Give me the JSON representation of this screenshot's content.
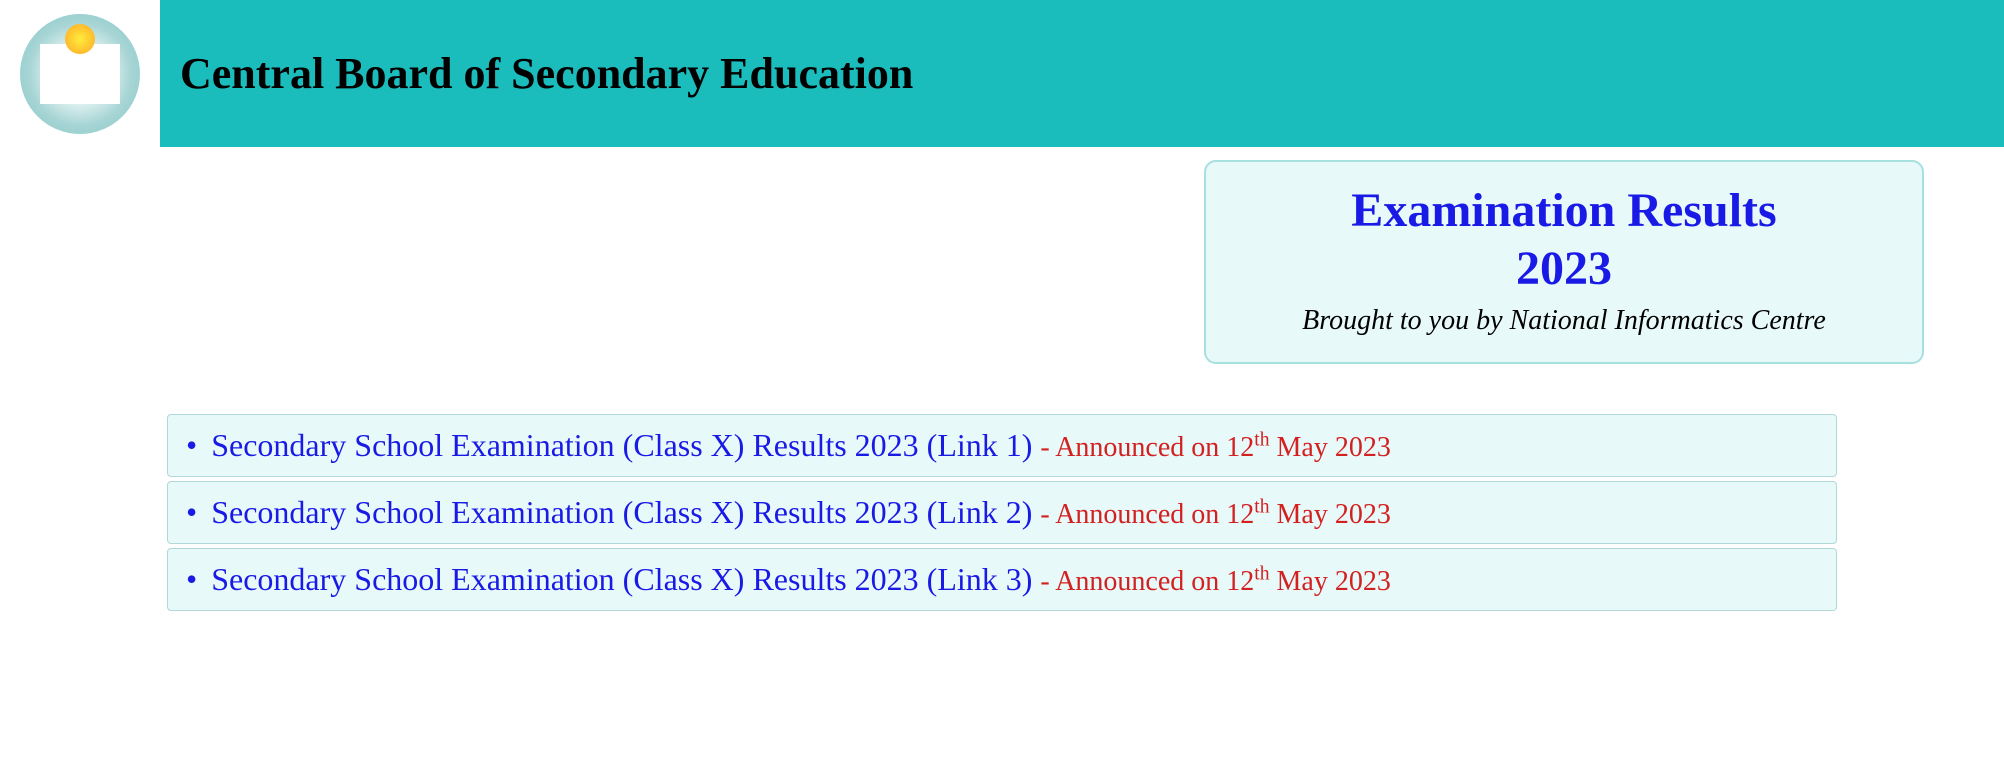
{
  "header": {
    "title": "Central Board of Secondary Education",
    "banner_color": "#1abcbc"
  },
  "results_card": {
    "title_line1": "Examination Results",
    "title_line2": "2023",
    "subtitle": "Brought to you by National Informatics Centre",
    "title_color": "#1a1ae6",
    "background_color": "#e8f9f9",
    "border_color": "#a8e0e0"
  },
  "links": [
    {
      "text": "Secondary School Examination (Class X) Results 2023 (Link 1)",
      "announce_prefix": " - Announced on 12",
      "announce_sup": "th",
      "announce_suffix": " May 2023"
    },
    {
      "text": "Secondary School Examination (Class X) Results 2023 (Link 2)",
      "announce_prefix": " - Announced on 12",
      "announce_sup": "th",
      "announce_suffix": " May 2023"
    },
    {
      "text": "Secondary School Examination (Class X) Results 2023 (Link 3)",
      "announce_prefix": " - Announced on 12",
      "announce_sup": "th",
      "announce_suffix": " May 2023"
    }
  ],
  "colors": {
    "link_color": "#1a1ae6",
    "announce_color": "#d32020",
    "row_background": "#e8f9f9",
    "row_border": "#b0d8d8"
  }
}
